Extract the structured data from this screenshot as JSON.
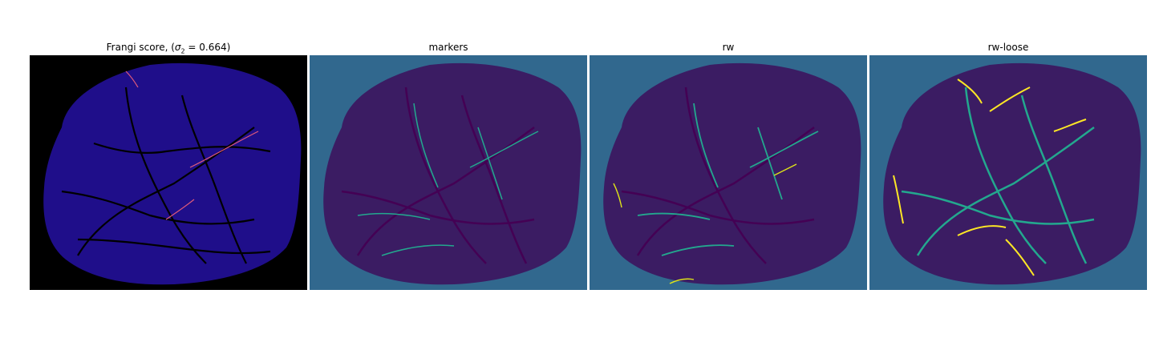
{
  "panels": [
    {
      "title": "Frangi score, (",
      "title_math": "σ",
      "title_sub": "2",
      "title_eq": " = 0.664)",
      "colors": {
        "background": "#000000",
        "tissue": "#1f0e8a",
        "vessel": "#000000",
        "highlight": "#e05a7a"
      }
    },
    {
      "title": "markers",
      "colors": {
        "background": "#31688e",
        "tissue": "#3b1c63",
        "vessel": "#440154",
        "highlight": "#23a88e"
      }
    },
    {
      "title": "rw",
      "colors": {
        "background": "#31688e",
        "tissue": "#3b1c63",
        "vessel": "#440154",
        "highlight": "#23a88e",
        "accent": "#dde318"
      }
    },
    {
      "title": "rw-loose",
      "colors": {
        "background": "#31688e",
        "tissue": "#3b1c63",
        "vessel": "#440154",
        "highlight": "#23a88e",
        "accent": "#fde725"
      }
    }
  ]
}
